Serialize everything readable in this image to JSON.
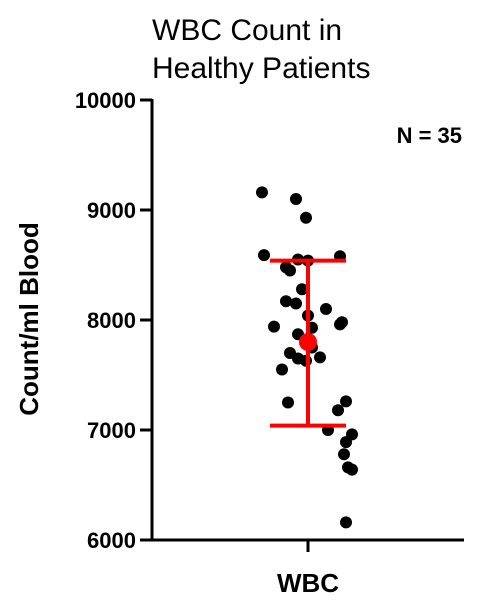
{
  "chart_data": {
    "type": "scatter",
    "title_lines": [
      "WBC Count in",
      "Healthy Patients"
    ],
    "ylabel": "Count/ml Blood",
    "categories": [
      "WBC"
    ],
    "ylim": [
      6000,
      10000
    ],
    "yticks": [
      6000,
      7000,
      8000,
      9000,
      10000
    ],
    "annotation": "N = 35",
    "grid": false,
    "colors": {
      "points": "#000000",
      "summary": "#ff0000"
    },
    "series": [
      {
        "category": "WBC",
        "values": [
          9160,
          9100,
          8930,
          8590,
          8580,
          8550,
          8540,
          8480,
          8450,
          8280,
          8170,
          8150,
          8100,
          8040,
          7980,
          7960,
          7940,
          7930,
          7870,
          7750,
          7700,
          7660,
          7650,
          7630,
          7550,
          7260,
          7250,
          7180,
          7000,
          6960,
          6890,
          6780,
          6660,
          6640,
          6160
        ]
      }
    ],
    "summary": {
      "mean": 7800,
      "error_upper": 8540,
      "error_lower": 7040
    }
  }
}
